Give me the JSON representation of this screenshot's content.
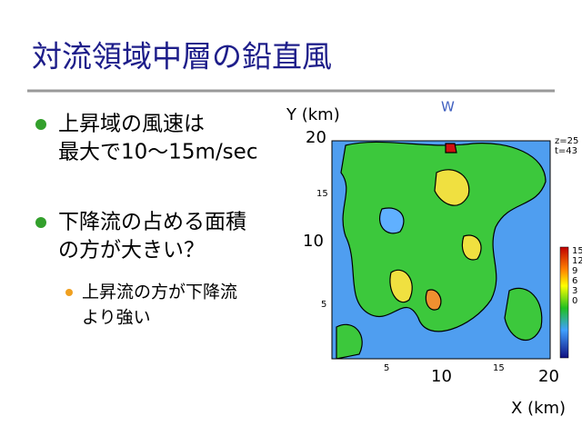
{
  "slide": {
    "title": "対流領域中層の鉛直風",
    "bullets": [
      {
        "lines": [
          "上昇域の風速は",
          "最大で10～15m/sec"
        ]
      },
      {
        "lines": [
          "下降流の占める面積",
          "の方が大きい？"
        ],
        "sub": [
          "上昇流の方が下降流",
          "より強い"
        ]
      }
    ],
    "figure": {
      "panel_label": "W",
      "y_label": "Y (km)",
      "x_label": "X (km)",
      "y_ticks": [
        "20",
        "15",
        "10",
        "5"
      ],
      "x_ticks": [
        "5",
        "10",
        "15",
        "20"
      ],
      "info": [
        "z=25",
        "t=43"
      ],
      "colorbar_ticks": [
        "15",
        "12",
        "9",
        "6",
        "3",
        "0"
      ]
    }
  }
}
